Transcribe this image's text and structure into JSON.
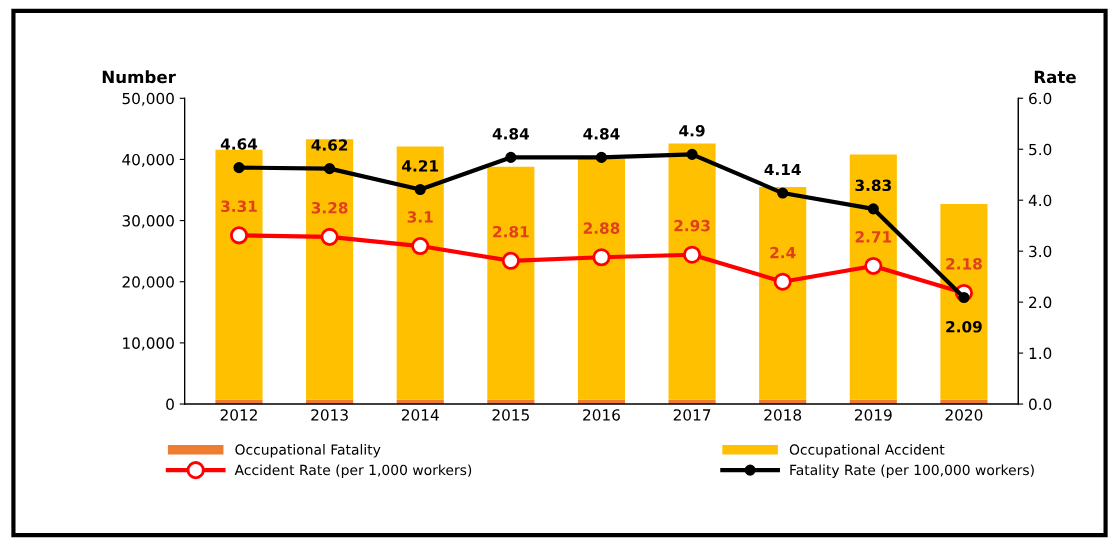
{
  "chart_data": {
    "type": "bar",
    "stacked": true,
    "categories": [
      "2012",
      "2013",
      "2014",
      "2015",
      "2016",
      "2017",
      "2018",
      "2019",
      "2020"
    ],
    "ylabel": "Number",
    "y2label": "Rate",
    "ylim": [
      0,
      50000
    ],
    "yticks": [
      {
        "value": 0,
        "label": "0"
      },
      {
        "value": 10000,
        "label": "10,000"
      },
      {
        "value": 20000,
        "label": "20,000"
      },
      {
        "value": 30000,
        "label": "30,000"
      },
      {
        "value": 40000,
        "label": "40,000"
      },
      {
        "value": 50000,
        "label": "50,000"
      }
    ],
    "y2lim": [
      0,
      6
    ],
    "y2ticks": [
      {
        "value": 0,
        "label": "0.0"
      },
      {
        "value": 1,
        "label": "1.0"
      },
      {
        "value": 2,
        "label": "2.0"
      },
      {
        "value": 3,
        "label": "3.0"
      },
      {
        "value": 4,
        "label": "4.0"
      },
      {
        "value": 5,
        "label": "5.0"
      },
      {
        "value": 6,
        "label": "6.0"
      }
    ],
    "legend": "bottom",
    "grid": false,
    "series": [
      {
        "name": "Occupational Fatality",
        "color": "#ed7d31",
        "values": [
          700,
          700,
          700,
          700,
          700,
          700,
          700,
          700,
          700
        ]
      },
      {
        "name": "Occupational Accident",
        "color": "#ffc000",
        "values": [
          40900,
          42600,
          41400,
          38100,
          39400,
          41900,
          34800,
          40100,
          32000
        ]
      },
      {
        "name": "Accident Rate (per 1,000 workers)",
        "type": "line",
        "axis": "y2",
        "color": "#ff0000",
        "marker": "circle",
        "data_labels": true,
        "values": [
          3.31,
          3.28,
          3.1,
          2.81,
          2.88,
          2.93,
          2.4,
          2.71,
          2.18
        ]
      },
      {
        "name": "Fatality Rate (per 100,000 workers)",
        "type": "line",
        "axis": "y2",
        "color": "#000000",
        "marker": "circle",
        "data_labels": true,
        "values": [
          4.64,
          4.62,
          4.21,
          4.84,
          4.84,
          4.9,
          4.14,
          3.83,
          2.09
        ]
      }
    ]
  }
}
